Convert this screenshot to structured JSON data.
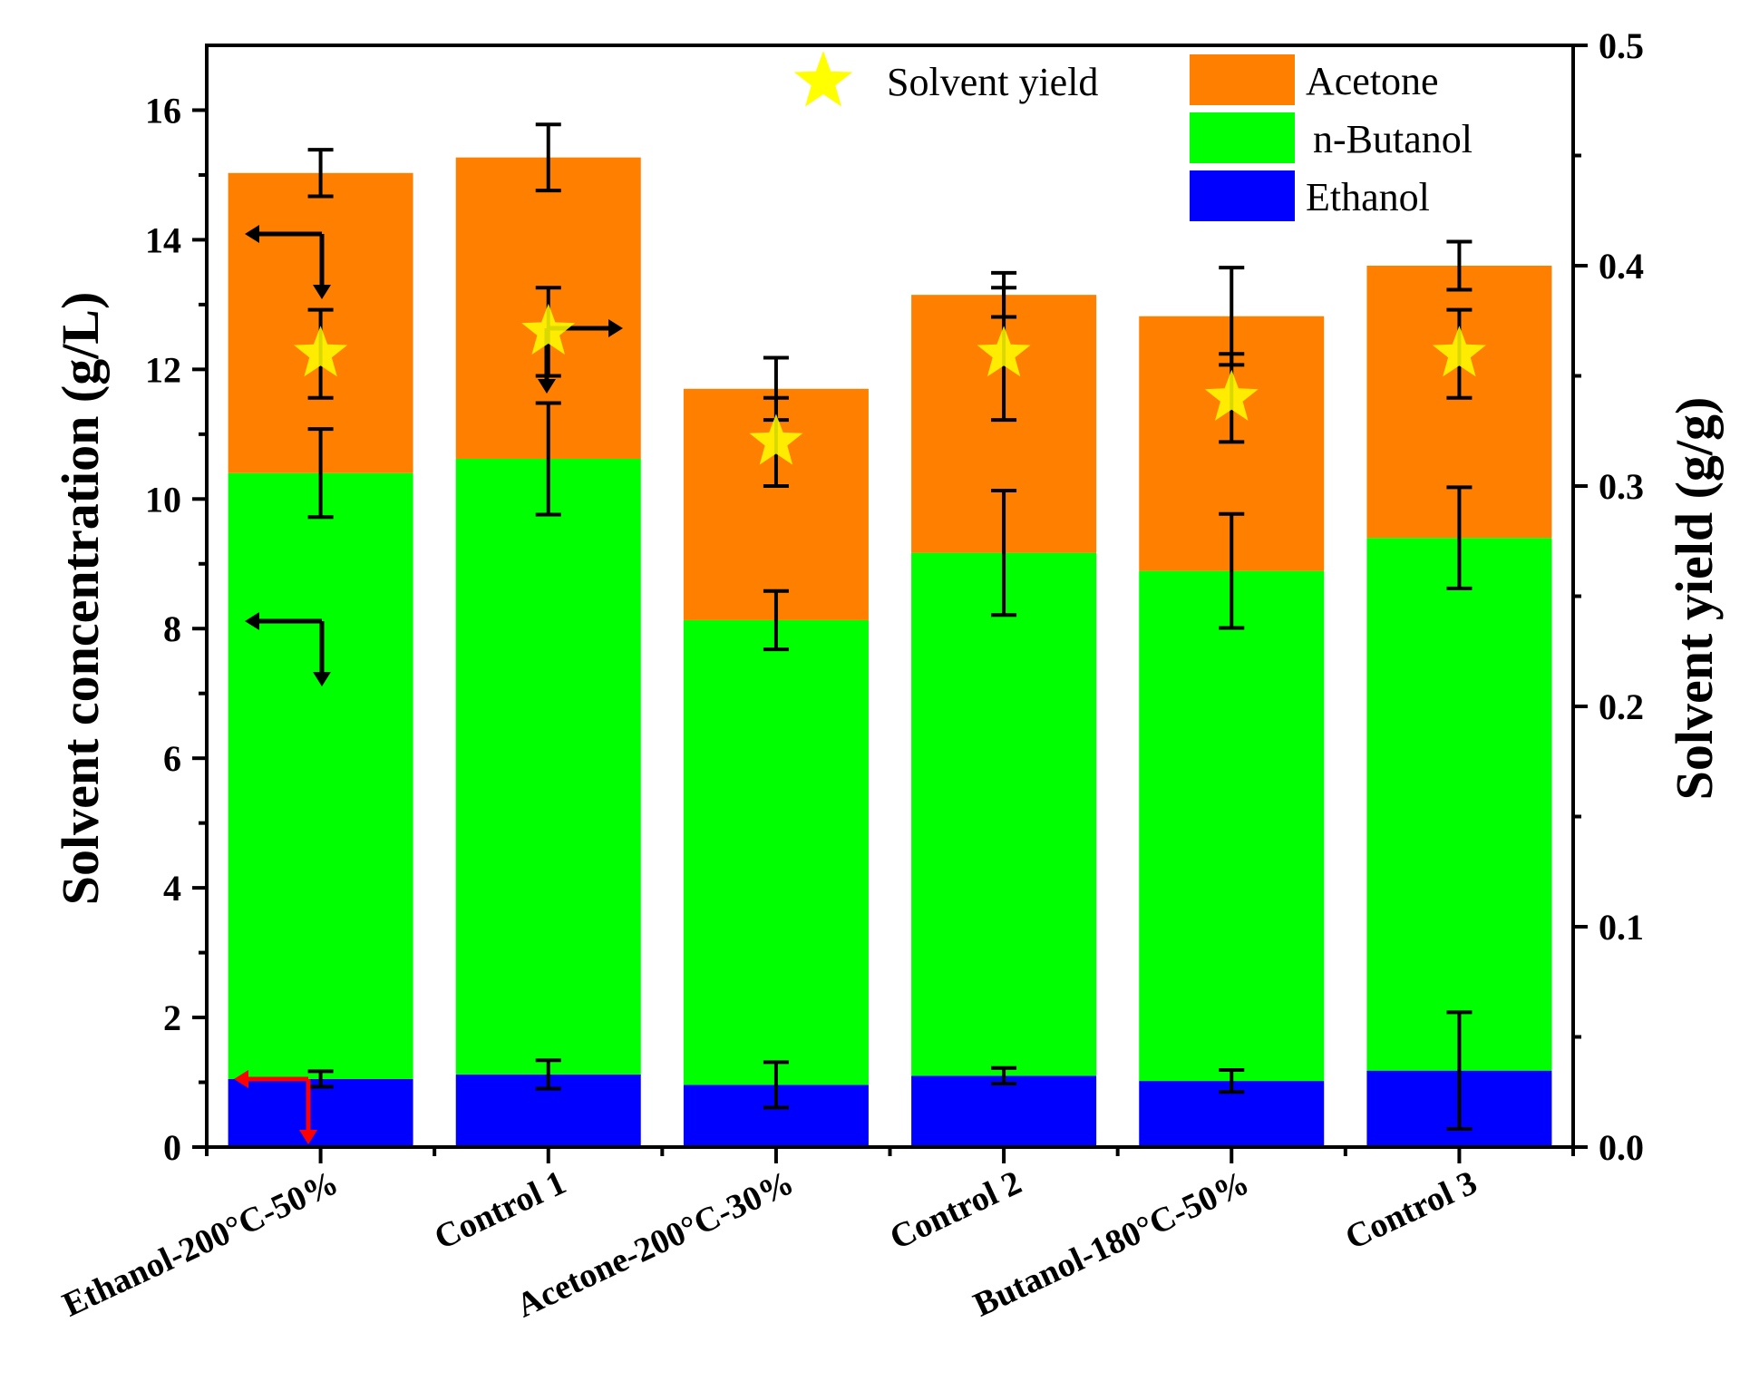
{
  "chart_data": {
    "type": "bar",
    "stacked": true,
    "categories": [
      "Ethanol-200°C-50%",
      "Control 1",
      "Acetone-200°C-30%",
      "Control 2",
      "Butanol-180°C-50%",
      "Control 3"
    ],
    "series": [
      {
        "name": "Ethanol",
        "color": "#0000ff",
        "values": [
          1.05,
          1.12,
          0.96,
          1.1,
          1.02,
          1.18
        ],
        "errors": [
          0.12,
          0.22,
          0.35,
          0.12,
          0.17,
          0.9
        ]
      },
      {
        "name": "n-Butanol",
        "color": "#00ff00",
        "values": [
          9.35,
          9.5,
          7.17,
          8.07,
          7.87,
          8.22
        ],
        "errors": [
          0.68,
          0.86,
          0.45,
          0.96,
          0.88,
          0.78
        ]
      },
      {
        "name": "Acetone",
        "color": "#ff8000",
        "values": [
          4.63,
          4.65,
          3.57,
          3.98,
          3.93,
          4.2
        ],
        "errors": [
          0.36,
          0.51,
          0.48,
          0.34,
          0.75,
          0.37
        ]
      }
    ],
    "secondary_series": {
      "name": "Solvent yield",
      "color": "#ffff00",
      "marker": "star",
      "values": [
        0.36,
        0.37,
        0.32,
        0.36,
        0.34,
        0.36
      ],
      "errors": [
        0.02,
        0.02,
        0.02,
        0.03,
        0.02,
        0.02
      ]
    },
    "xlabel": "",
    "ylabel": "Solvent concentration (g/L)",
    "y2label": "Solvent yield (g/g)",
    "ylim": [
      0,
      17
    ],
    "y2lim": [
      0,
      0.5
    ],
    "yticks": [
      "0",
      "2",
      "4",
      "6",
      "8",
      "10",
      "12",
      "14",
      "16"
    ],
    "y2ticks": [
      "0.0",
      "0.1",
      "0.2",
      "0.3",
      "0.4",
      "0.5"
    ],
    "legend": {
      "placement": "top-right",
      "yield_entry": "Solvent yield",
      "entries": [
        "Acetone",
        "n-Butanol",
        "Ethanol"
      ]
    },
    "grid": false
  }
}
